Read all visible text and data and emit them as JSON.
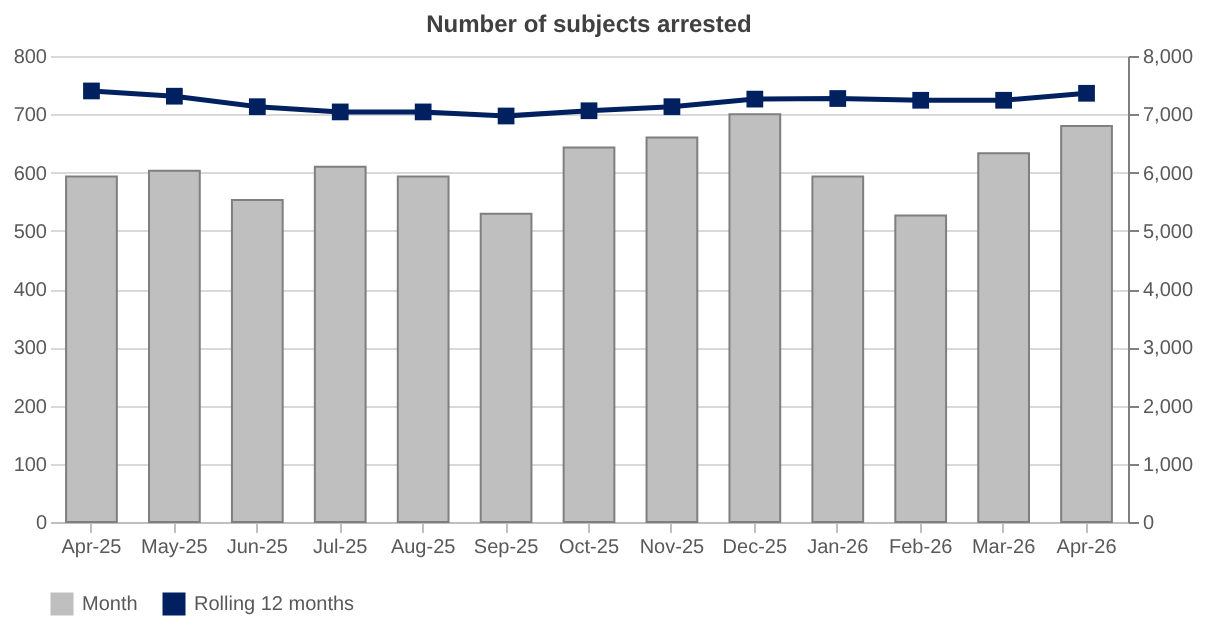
{
  "chart_data": {
    "type": "bar",
    "title": "Number of subjects arrested",
    "categories": [
      "Apr-25",
      "May-25",
      "Jun-25",
      "Jul-25",
      "Aug-25",
      "Sep-25",
      "Oct-25",
      "Nov-25",
      "Dec-25",
      "Jan-26",
      "Feb-26",
      "Mar-26",
      "Apr-26"
    ],
    "series": [
      {
        "name": "Month",
        "color": "#bfbfbf",
        "values": [
          593,
          603,
          553,
          610,
          593,
          529,
          643,
          660,
          700,
          593,
          526,
          633,
          680
        ]
      },
      {
        "name": "Rolling 12 months",
        "type": "line",
        "axis": "y2",
        "color": "#002060",
        "values": [
          7400,
          7310,
          7130,
          7040,
          7040,
          6970,
          7060,
          7130,
          7260,
          7270,
          7240,
          7240,
          7360
        ]
      }
    ],
    "ylim": [
      0,
      800
    ],
    "yticks": [
      0,
      100,
      200,
      300,
      400,
      500,
      600,
      700,
      800
    ],
    "y2lim": [
      0,
      8000
    ],
    "y2ticks": [
      0,
      {
        "value": 1000,
        "label": "1,000"
      },
      {
        "value": 2000,
        "label": "2,000"
      },
      {
        "value": 3000,
        "label": "3,000"
      },
      {
        "value": 4000,
        "label": "4,000"
      },
      {
        "value": 5000,
        "label": "5,000"
      },
      {
        "value": 6000,
        "label": "6,000"
      },
      {
        "value": 7000,
        "label": "7,000"
      },
      {
        "value": 8000,
        "label": "8,000"
      }
    ],
    "grid": "y",
    "legend": "bottom",
    "marker": "square",
    "line_style": "solid"
  }
}
